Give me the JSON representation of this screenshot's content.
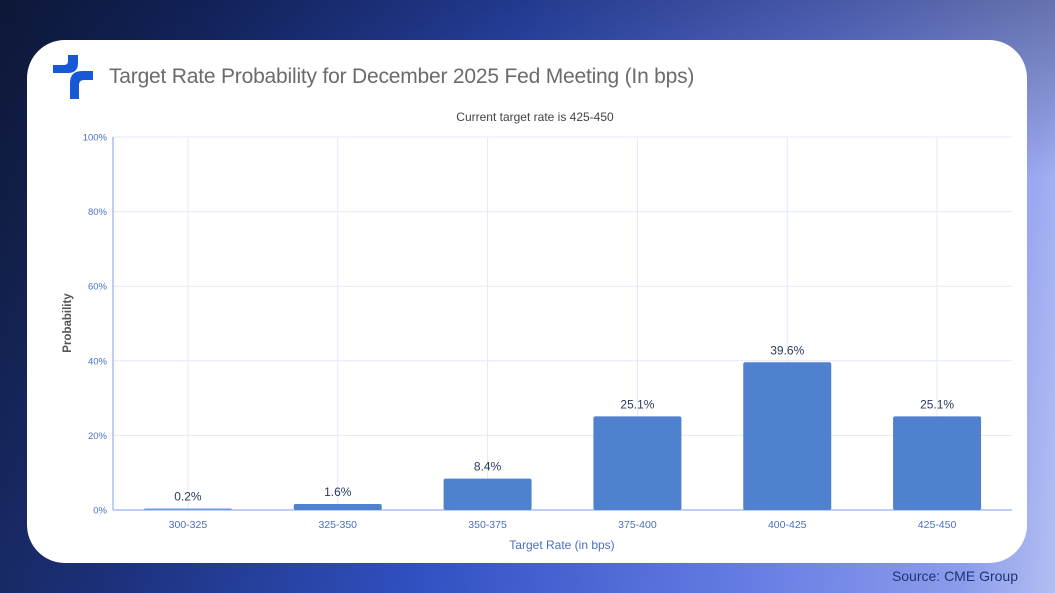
{
  "header": {
    "title": "Target Rate Probability for December 2025 Fed Meeting (In bps)",
    "logo_icon": "brand-cross-logo-icon"
  },
  "footer": {
    "source": "Source: CME Group"
  },
  "colors": {
    "bar": "#4f81cf",
    "bar_light": "#6f9ae0",
    "grid": "#e3e9fb",
    "axis": "#a8bff0",
    "tick_text": "#4a6fc4",
    "label_text": "#2a3a5e",
    "logo": "#1758d6"
  },
  "chart_data": {
    "type": "bar",
    "title": "Target Rate Probability for December 2025 Fed Meeting (In bps)",
    "subtitle": "Current target rate is 425-450",
    "xlabel": "Target Rate (in bps)",
    "ylabel": "Probability",
    "categories": [
      "300-325",
      "325-350",
      "350-375",
      "375-400",
      "400-425",
      "425-450"
    ],
    "values": [
      0.2,
      1.6,
      8.4,
      25.1,
      39.6,
      25.1
    ],
    "data_labels": [
      "0.2%",
      "1.6%",
      "8.4%",
      "25.1%",
      "39.6%",
      "25.1%"
    ],
    "ylim": [
      0,
      100
    ],
    "yticks": [
      0,
      20,
      40,
      60,
      80,
      100
    ],
    "ytick_labels": [
      "0%",
      "20%",
      "40%",
      "60%",
      "80%",
      "100%"
    ],
    "grid": true,
    "legend": "none"
  }
}
